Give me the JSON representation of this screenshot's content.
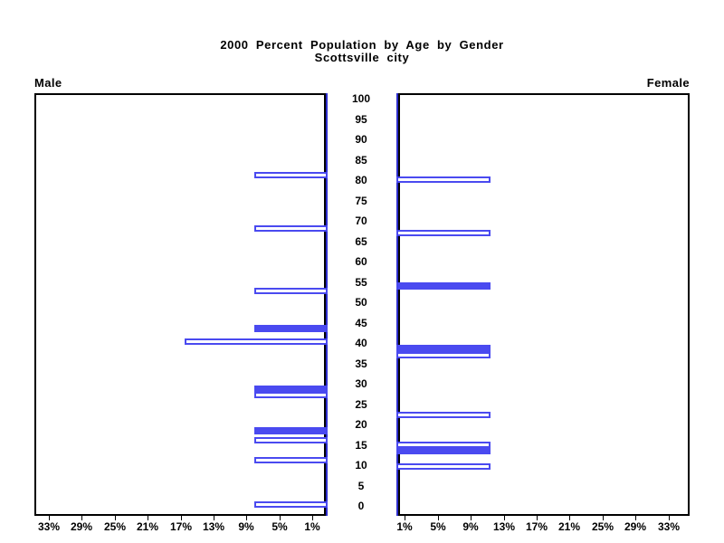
{
  "colors": {
    "bar_blue": "#4a4af0",
    "axis_blue": "#2c2ccc",
    "frame_black": "#000000",
    "text_black": "#000000"
  },
  "chart_data": {
    "type": "bar",
    "variant": "population-pyramid",
    "title": "2000 Percent Population by Age by Gender",
    "subtitle": "Scottsville city",
    "legend": "none",
    "grid": "off",
    "age_axis": {
      "min": 0,
      "max": 100,
      "step": 5,
      "tick_labels_top_to_bottom": [
        "100",
        "95",
        "90",
        "85",
        "80",
        "75",
        "70",
        "65",
        "60",
        "55",
        "50",
        "45",
        "40",
        "35",
        "30",
        "25",
        "20",
        "15",
        "10",
        "5",
        "0"
      ]
    },
    "percent_axis": {
      "range_each_side_pct": [
        0,
        35
      ],
      "tick_step_pct": 4,
      "left_tick_labels": [
        "33%",
        "29%",
        "25%",
        "21%",
        "17%",
        "13%",
        "9%",
        "5%",
        "1%"
      ],
      "right_tick_labels": [
        "1%",
        "5%",
        "9%",
        "13%",
        "17%",
        "21%",
        "25%",
        "29%",
        "33%"
      ]
    },
    "series": [
      {
        "name": "Male",
        "side": "left",
        "bars": [
          {
            "age": 81.3,
            "percent": 9.0,
            "fill": "empty"
          },
          {
            "age": 68.2,
            "percent": 9.0,
            "fill": "empty"
          },
          {
            "age": 52.8,
            "percent": 9.0,
            "fill": "empty"
          },
          {
            "age": 43.6,
            "percent": 9.0,
            "fill": "solid"
          },
          {
            "age": 40.4,
            "percent": 17.5,
            "fill": "empty"
          },
          {
            "age": 28.7,
            "percent": 9.0,
            "fill": "solid"
          },
          {
            "age": 27.3,
            "percent": 9.0,
            "fill": "empty"
          },
          {
            "age": 18.4,
            "percent": 9.0,
            "fill": "solid"
          },
          {
            "age": 16.2,
            "percent": 9.0,
            "fill": "empty"
          },
          {
            "age": 11.2,
            "percent": 9.0,
            "fill": "empty"
          },
          {
            "age": 0.3,
            "percent": 9.0,
            "fill": "empty"
          }
        ]
      },
      {
        "name": "Female",
        "side": "right",
        "bars": [
          {
            "age": 80.1,
            "percent": 11.5,
            "fill": "empty"
          },
          {
            "age": 67.1,
            "percent": 11.5,
            "fill": "empty"
          },
          {
            "age": 53.9,
            "percent": 11.5,
            "fill": "solid"
          },
          {
            "age": 38.7,
            "percent": 11.5,
            "fill": "solid"
          },
          {
            "age": 37.1,
            "percent": 11.5,
            "fill": "empty"
          },
          {
            "age": 22.4,
            "percent": 11.5,
            "fill": "empty"
          },
          {
            "age": 15.1,
            "percent": 11.5,
            "fill": "empty"
          },
          {
            "age": 13.6,
            "percent": 11.5,
            "fill": "solid"
          },
          {
            "age": 9.6,
            "percent": 11.5,
            "fill": "empty"
          }
        ]
      }
    ]
  }
}
